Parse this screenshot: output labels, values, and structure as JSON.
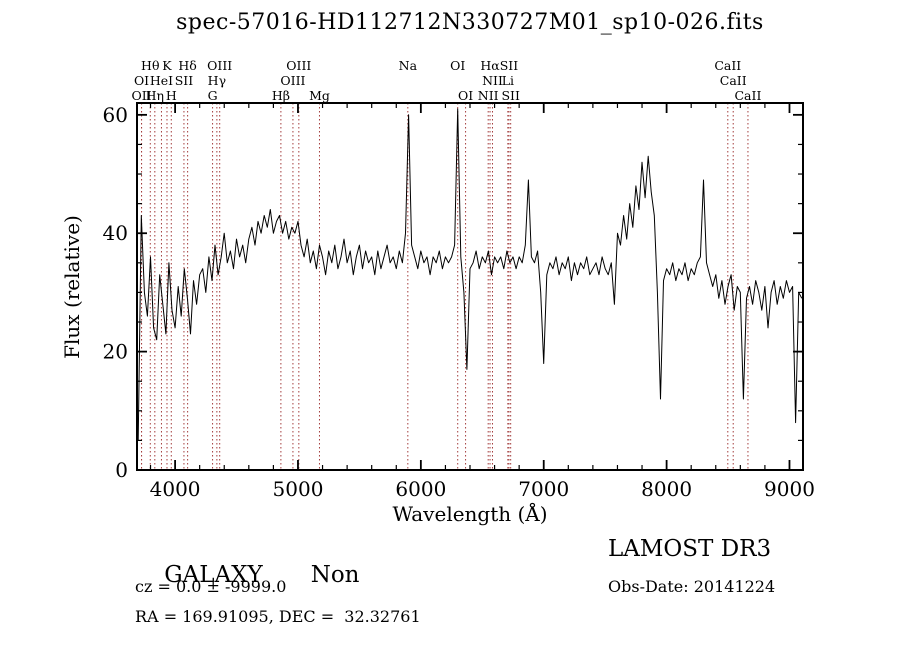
{
  "title": "spec-57016-HD112712N330727M01_sp10-026.fits",
  "axes": {
    "xlabel": "Wavelength (Å)",
    "ylabel": "Flux (relative)",
    "xlim": [
      3690,
      9110
    ],
    "ylim": [
      0,
      62
    ],
    "xticks": [
      4000,
      5000,
      6000,
      7000,
      8000,
      9000
    ],
    "yticks": [
      0,
      20,
      40,
      60
    ],
    "minor_x_step": 200,
    "minor_y_step": 5
  },
  "chart_data": {
    "type": "line",
    "series_name": "spectrum-flux",
    "title": "spec-57016-HD112712N330727M01_sp10-026.fits",
    "xlabel": "Wavelength (Å)",
    "ylabel": "Flux (relative)",
    "xlim": [
      3690,
      9110
    ],
    "ylim": [
      0,
      62
    ],
    "line_color": "#000000",
    "x_start": 3700,
    "x_step": 25,
    "flux": [
      5,
      43,
      30,
      26,
      36,
      24,
      22,
      33,
      28,
      23,
      35,
      27,
      24,
      31,
      26,
      34,
      29,
      23,
      32,
      28,
      33,
      34,
      30,
      36,
      32,
      38,
      33,
      36,
      40,
      35,
      37,
      34,
      39,
      36,
      38,
      35,
      39,
      41,
      38,
      42,
      40,
      43,
      41,
      44,
      40,
      42,
      43,
      40,
      42,
      39,
      41,
      40,
      42,
      38,
      36,
      39,
      35,
      37,
      34,
      38,
      36,
      33,
      37,
      35,
      38,
      34,
      36,
      39,
      35,
      37,
      33,
      36,
      38,
      34,
      37,
      35,
      36,
      33,
      37,
      34,
      36,
      38,
      35,
      36,
      34,
      37,
      35,
      40,
      60,
      38,
      36,
      34,
      37,
      35,
      36,
      33,
      36,
      35,
      37,
      34,
      36,
      35,
      36,
      38,
      61,
      36,
      30,
      17,
      34,
      35,
      37,
      34,
      36,
      35,
      37,
      33,
      36,
      35,
      36,
      34,
      37,
      35,
      36,
      34,
      36,
      35,
      38,
      49,
      36,
      35,
      37,
      30,
      18,
      33,
      35,
      34,
      36,
      33,
      35,
      34,
      36,
      32,
      35,
      33,
      35,
      34,
      36,
      33,
      34,
      35,
      33,
      36,
      34,
      33,
      35,
      28,
      40,
      38,
      43,
      39,
      45,
      41,
      48,
      44,
      52,
      46,
      53,
      47,
      43,
      30,
      12,
      32,
      34,
      33,
      35,
      32,
      34,
      33,
      35,
      32,
      34,
      33,
      35,
      36,
      49,
      35,
      33,
      31,
      33,
      29,
      32,
      28,
      31,
      33,
      27,
      31,
      30,
      12,
      29,
      31,
      28,
      32,
      30,
      27,
      31,
      24,
      30,
      32,
      28,
      31,
      29,
      32,
      30,
      31,
      8,
      30,
      29
    ]
  },
  "spectral_lines": {
    "color": "#a33c3c",
    "label_color": "#000000",
    "items": [
      {
        "label": "OII",
        "wavelength": 3727,
        "row": 3
      },
      {
        "label": "OI",
        "wavelength": 3727,
        "row": 2
      },
      {
        "label": "Hθ",
        "wavelength": 3798,
        "row": 1
      },
      {
        "label": "Hη",
        "wavelength": 3835,
        "row": 3
      },
      {
        "label": "HeI",
        "wavelength": 3889,
        "row": 2
      },
      {
        "label": "K",
        "wavelength": 3934,
        "row": 1
      },
      {
        "label": "H",
        "wavelength": 3969,
        "row": 3
      },
      {
        "label": "SII",
        "wavelength": 4072,
        "row": 2
      },
      {
        "label": "Hδ",
        "wavelength": 4102,
        "row": 1
      },
      {
        "label": "G",
        "wavelength": 4305,
        "row": 3
      },
      {
        "label": "Hγ",
        "wavelength": 4340,
        "row": 2
      },
      {
        "label": "OIII",
        "wavelength": 4363,
        "row": 1
      },
      {
        "label": "Hβ",
        "wavelength": 4861,
        "row": 3
      },
      {
        "label": "OIII",
        "wavelength": 4959,
        "row": 2
      },
      {
        "label": "OIII",
        "wavelength": 5007,
        "row": 1
      },
      {
        "label": "Mg",
        "wavelength": 5175,
        "row": 3
      },
      {
        "label": "Na",
        "wavelength": 5894,
        "row": 1
      },
      {
        "label": "OI",
        "wavelength": 6300,
        "row": 1
      },
      {
        "label": "OI",
        "wavelength": 6364,
        "row": 3
      },
      {
        "label": "NII",
        "wavelength": 6548,
        "row": 3
      },
      {
        "label": "Hα",
        "wavelength": 6563,
        "row": 1
      },
      {
        "label": "NII",
        "wavelength": 6583,
        "row": 2
      },
      {
        "label": "Li",
        "wavelength": 6708,
        "row": 2
      },
      {
        "label": "SII",
        "wavelength": 6717,
        "row": 1
      },
      {
        "label": "SII",
        "wavelength": 6731,
        "row": 3
      },
      {
        "label": "CaII",
        "wavelength": 8498,
        "row": 1
      },
      {
        "label": "CaII",
        "wavelength": 8542,
        "row": 2
      },
      {
        "label": "CaII",
        "wavelength": 8662,
        "row": 3
      }
    ]
  },
  "footer": {
    "class": "GALAXY",
    "subclass": "Non",
    "survey": "LAMOST DR3",
    "cz": "cz = 0.0 ± -9999.0",
    "obs_date": "Obs-Date: 20141224",
    "coords": "RA = 169.91095, DEC =  32.32761"
  }
}
